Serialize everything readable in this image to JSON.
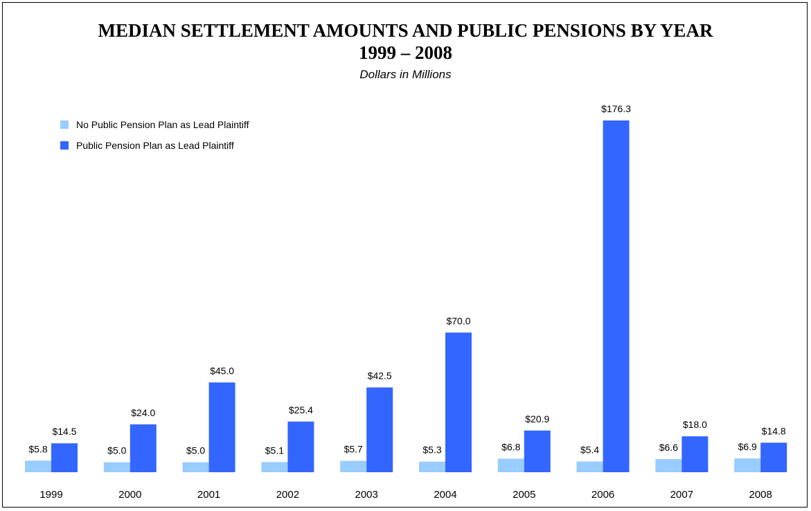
{
  "chart_data": {
    "type": "bar",
    "title": "MEDIAN SETTLEMENT AMOUNTS AND PUBLIC PENSIONS BY YEAR",
    "title_line2": "1999 – 2008",
    "subtitle": "Dollars in Millions",
    "xlabel": "",
    "ylabel": "",
    "ylim": [
      0,
      180
    ],
    "grid": false,
    "legend_position": "top-left",
    "categories": [
      "1999",
      "2000",
      "2001",
      "2002",
      "2003",
      "2004",
      "2005",
      "2006",
      "2007",
      "2008"
    ],
    "series": [
      {
        "name": "No Public Pension Plan as Lead Plaintiff",
        "color": "#99ccff",
        "values": [
          5.8,
          5.0,
          5.0,
          5.1,
          5.7,
          5.3,
          6.8,
          5.4,
          6.6,
          6.9
        ],
        "labels": [
          "$5.8",
          "$5.0",
          "$5.0",
          "$5.1",
          "$5.7",
          "$5.3",
          "$6.8",
          "$5.4",
          "$6.6",
          "$6.9"
        ]
      },
      {
        "name": "Public Pension Plan as Lead Plaintiff",
        "color": "#3366ff",
        "values": [
          14.5,
          24.0,
          45.0,
          25.4,
          42.5,
          70.0,
          20.9,
          176.3,
          18.0,
          14.8
        ],
        "labels": [
          "$14.5",
          "$24.0",
          "$45.0",
          "$25.4",
          "$42.5",
          "$70.0",
          "$20.9",
          "$176.3",
          "$18.0",
          "$14.8"
        ]
      }
    ]
  }
}
